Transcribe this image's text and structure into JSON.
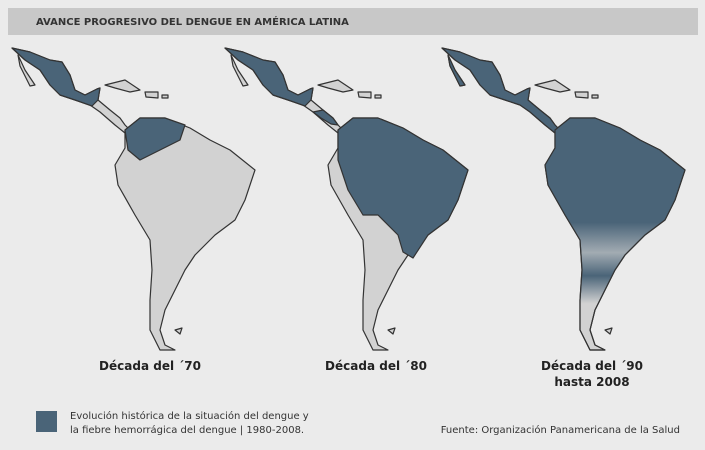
{
  "header": {
    "title": "AVANCE PROGRESIVO DEL DENGUE EN AMÉRICA LATINA"
  },
  "maps": [
    {
      "label": [
        "Década del ´70"
      ]
    },
    {
      "label": [
        "Década del ´80"
      ]
    },
    {
      "label": [
        "Década del ´90",
        "hasta 2008"
      ]
    }
  ],
  "legend": {
    "lines": [
      "Evolución histórica de la situación del dengue y",
      "la fiebre hemorrágica del dengue | 1980-2008."
    ]
  },
  "source": "Fuente: Organización Panamericana de la Salud"
}
